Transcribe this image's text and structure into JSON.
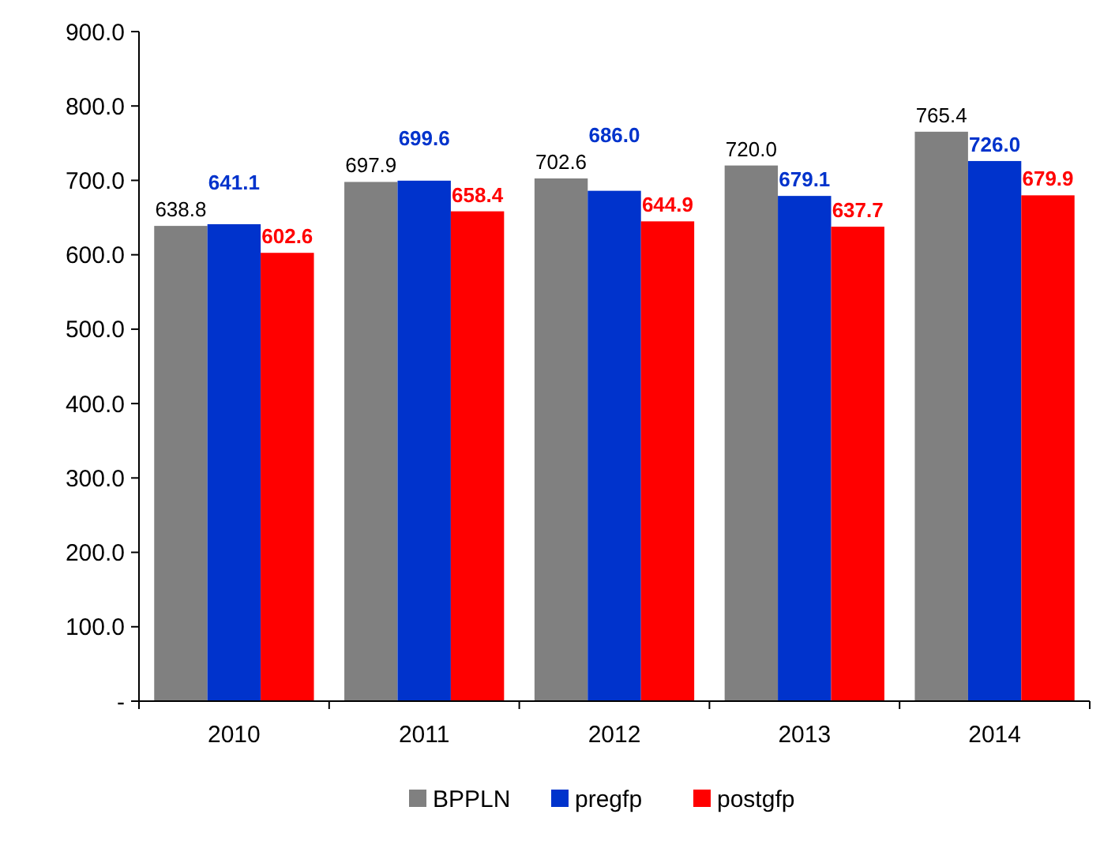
{
  "chart_data": {
    "type": "bar",
    "categories": [
      "2010",
      "2011",
      "2012",
      "2013",
      "2014"
    ],
    "series": [
      {
        "name": "BPPLN",
        "color": "#808080",
        "values": [
          638.8,
          697.9,
          702.6,
          720.0,
          765.4
        ],
        "value_labels": [
          "638.8",
          "697.9",
          "702.6",
          "720.0",
          "765.4"
        ]
      },
      {
        "name": "pregfp",
        "color": "#0033cc",
        "values": [
          641.1,
          699.6,
          686.0,
          679.1,
          726.0
        ],
        "value_labels": [
          "641.1",
          "699.6",
          "686.0",
          "679.1",
          "726.0"
        ]
      },
      {
        "name": "postgfp",
        "color": "#ff0000",
        "values": [
          602.6,
          658.4,
          644.9,
          637.7,
          679.9
        ],
        "value_labels": [
          "602.6",
          "658.4",
          "644.9",
          "637.7",
          "679.9"
        ]
      }
    ],
    "ylim": [
      0,
      900
    ],
    "yticks": [
      {
        "value": 0,
        "label": "-"
      },
      {
        "value": 100,
        "label": "100.0"
      },
      {
        "value": 200,
        "label": "200.0"
      },
      {
        "value": 300,
        "label": "300.0"
      },
      {
        "value": 400,
        "label": "400.0"
      },
      {
        "value": 500,
        "label": "500.0"
      },
      {
        "value": 600,
        "label": "600.0"
      },
      {
        "value": 700,
        "label": "700.0"
      },
      {
        "value": 800,
        "label": "800.0"
      },
      {
        "value": 900,
        "label": "900.0"
      }
    ],
    "grid": false,
    "legend": "bottom"
  }
}
